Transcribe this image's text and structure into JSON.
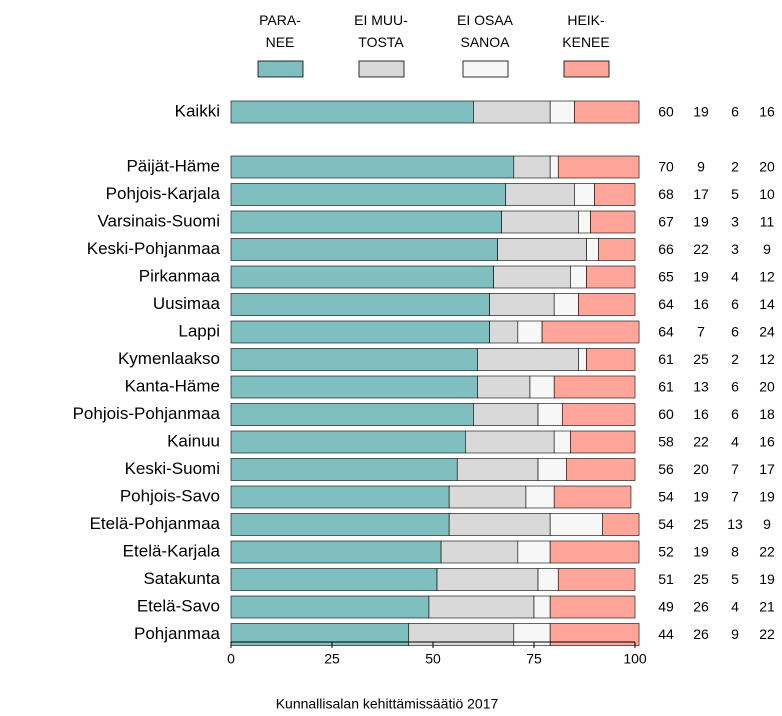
{
  "chart_data": {
    "type": "stacked-bar-horizontal",
    "categories": [
      "Kaikki",
      "Päijät-Häme",
      "Pohjois-Karjala",
      "Varsinais-Suomi",
      "Keski-Pohjanmaa",
      "Pirkanmaa",
      "Uusimaa",
      "Lappi",
      "Kymenlaakso",
      "Kanta-Häme",
      "Pohjois-Pohjanmaa",
      "Kainuu",
      "Keski-Suomi",
      "Pohjois-Savo",
      "Etelä-Pohjanmaa",
      "Etelä-Karjala",
      "Satakunta",
      "Etelä-Savo",
      "Pohjanmaa"
    ],
    "series": [
      {
        "name": "PARA-\nNEE",
        "color": "#7fbfbf",
        "values": [
          60,
          70,
          68,
          67,
          66,
          65,
          64,
          64,
          61,
          61,
          60,
          58,
          56,
          54,
          54,
          52,
          51,
          49,
          44
        ]
      },
      {
        "name": "EI MUU-\nTOSTA",
        "color": "#d9d9d9",
        "values": [
          19,
          9,
          17,
          19,
          22,
          19,
          16,
          7,
          25,
          13,
          16,
          22,
          20,
          19,
          25,
          19,
          25,
          26,
          26
        ]
      },
      {
        "name": "EI OSAA\nSANOA",
        "color": "#f7f7f7",
        "values": [
          6,
          2,
          5,
          3,
          3,
          4,
          6,
          6,
          2,
          6,
          6,
          4,
          7,
          7,
          13,
          8,
          5,
          4,
          9
        ]
      },
      {
        "name": "HEIK-\nKENEE",
        "color": "#ffa59a",
        "values": [
          16,
          20,
          10,
          11,
          9,
          12,
          14,
          24,
          12,
          20,
          18,
          16,
          17,
          19,
          9,
          22,
          19,
          21,
          22
        ]
      }
    ],
    "xlim": [
      0,
      100
    ],
    "xticks": [
      0,
      25,
      50,
      75,
      100
    ],
    "legend": "top",
    "source": "Kunnallisalan kehittämissäätiö 2017"
  }
}
